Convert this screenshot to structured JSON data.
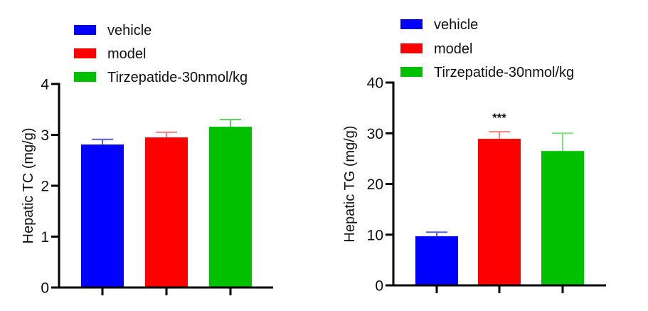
{
  "chart_data": [
    {
      "type": "bar",
      "title": "",
      "xlabel": "",
      "ylabel": "Hepatic TC (mg/g)",
      "ylim": [
        0,
        4
      ],
      "yticks": [
        0,
        1,
        2,
        3,
        4
      ],
      "grid": false,
      "legend_position": "top",
      "categories": [
        "vehicle",
        "model",
        "Tirzepatide-30nmol/kg"
      ],
      "values": [
        2.81,
        2.95,
        3.16
      ],
      "errors": [
        0.1,
        0.1,
        0.14
      ],
      "colors": [
        "#0000ff",
        "#ff0000",
        "#00c000"
      ],
      "error_colors": [
        "#5c5cff",
        "#ff8080",
        "#5fd25f"
      ],
      "annotations": [
        "",
        "",
        ""
      ]
    },
    {
      "type": "bar",
      "title": "",
      "xlabel": "",
      "ylabel": "Hepatic TG (mg/g)",
      "ylim": [
        0,
        40
      ],
      "yticks": [
        0,
        10,
        20,
        30,
        40
      ],
      "grid": false,
      "legend_position": "top",
      "categories": [
        "vehicle",
        "model",
        "Tirzepatide-30nmol/kg"
      ],
      "values": [
        9.7,
        28.9,
        26.5
      ],
      "errors": [
        0.8,
        1.4,
        3.5
      ],
      "colors": [
        "#0000ff",
        "#ff0000",
        "#00c000"
      ],
      "error_colors": [
        "#5c5cff",
        "#ff8080",
        "#7ee07e"
      ],
      "annotations": [
        "",
        "***",
        ""
      ]
    }
  ]
}
